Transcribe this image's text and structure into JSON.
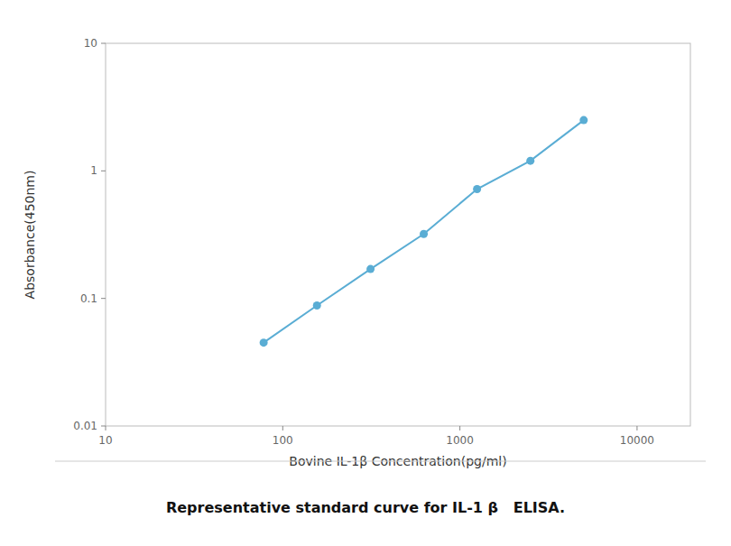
{
  "chart_data": {
    "type": "line",
    "caption": "Representative standard curve for IL-1 β   ELISA.",
    "x_label": "Bovine IL-1β Concentration(pg/ml)",
    "y_label": "Absorbance(450nm)",
    "x": [
      78,
      156,
      313,
      625,
      1250,
      2500,
      5000
    ],
    "values": [
      0.045,
      0.088,
      0.17,
      0.32,
      0.72,
      1.2,
      2.5
    ],
    "color": "#5aadd4",
    "marker": "circle",
    "line_style": "solid",
    "log": true,
    "grid": false,
    "xlim": [
      10,
      20000
    ],
    "ylim": [
      0.01,
      10
    ],
    "xticks": [
      10,
      100,
      1000,
      10000
    ],
    "yticks": [
      0.01,
      0.1,
      1,
      10
    ]
  }
}
